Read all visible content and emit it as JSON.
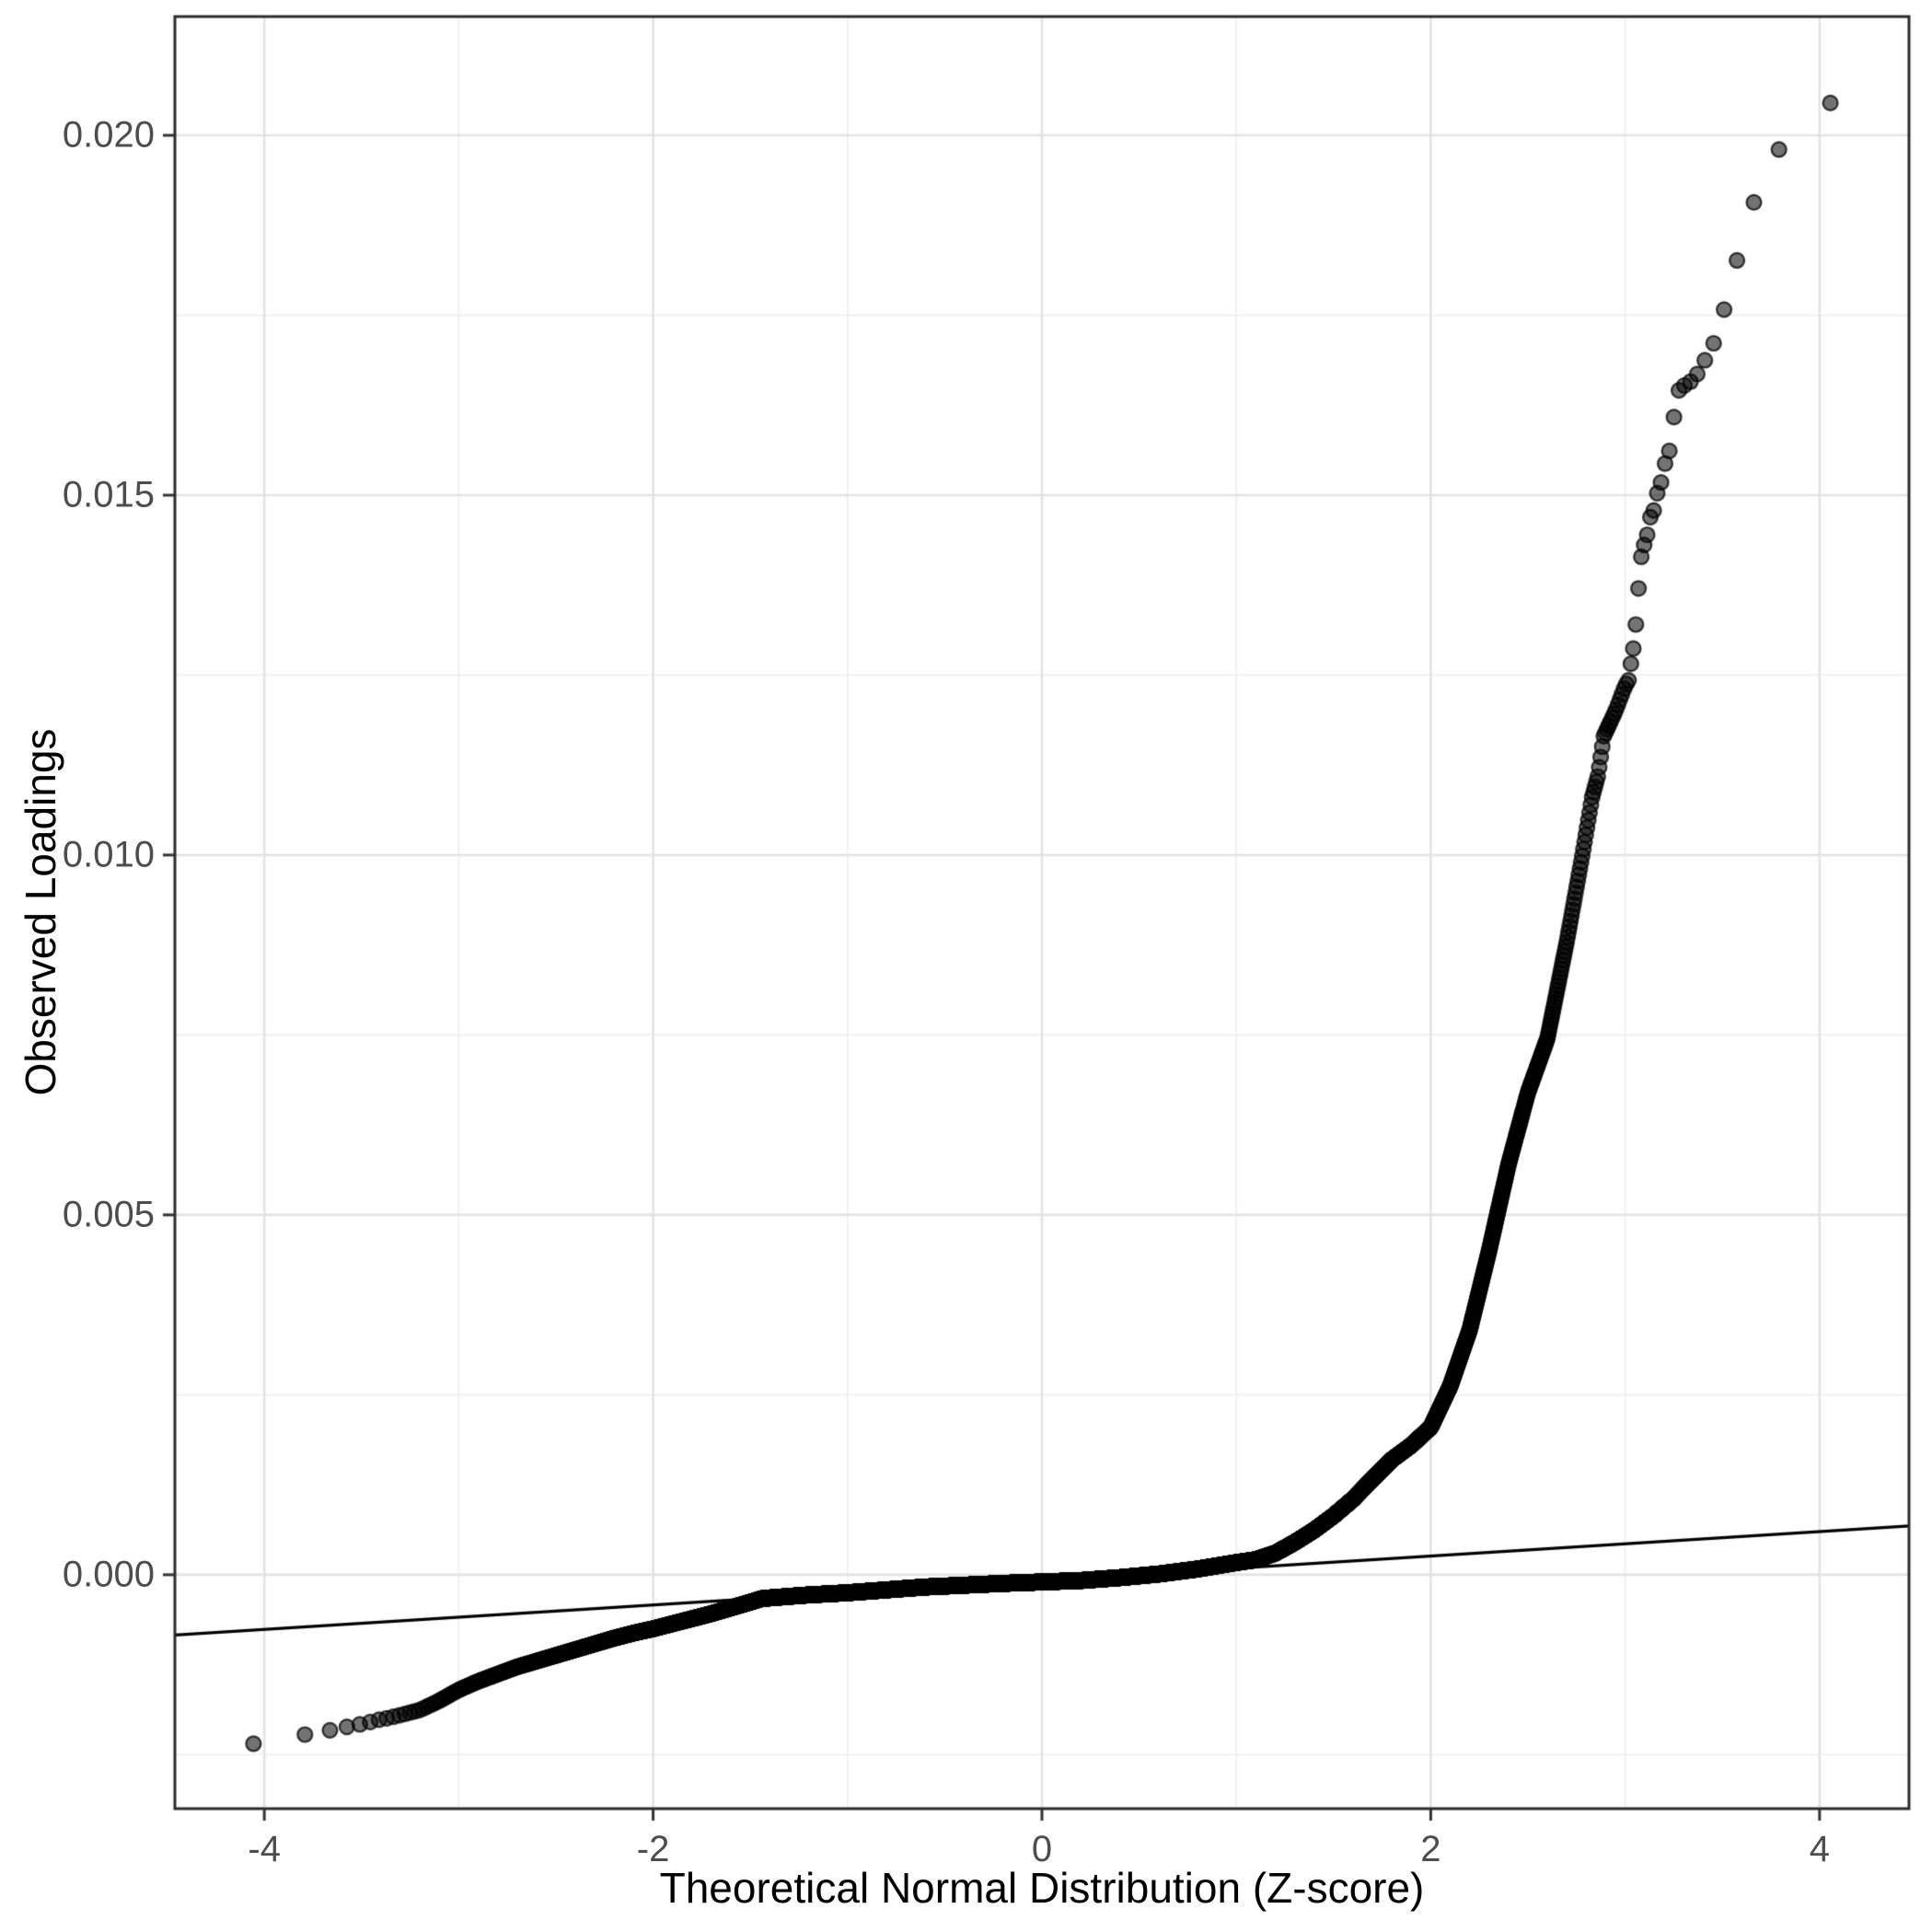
{
  "chart_data": {
    "type": "scatter",
    "subtype": "qq-plot",
    "title": "",
    "xlabel": "Theoretical Normal Distribution (Z-score)",
    "ylabel": "Observed Loadings",
    "x_ticks": [
      -4,
      -2,
      0,
      2,
      4
    ],
    "x_tick_labels": [
      "-4",
      "-2",
      "0",
      "2",
      "4"
    ],
    "y_ticks": [
      0.0,
      0.005,
      0.01,
      0.015,
      0.02
    ],
    "y_tick_labels": [
      "0.000",
      "0.005",
      "0.010",
      "0.015",
      "0.020"
    ],
    "x_minor_gridlines": [
      -3,
      -1,
      1,
      3
    ],
    "y_minor_gridlines": [
      -0.0025,
      0.0025,
      0.0075,
      0.0125,
      0.0175
    ],
    "xlim": [
      -4.46,
      4.46
    ],
    "ylim": [
      -0.00325,
      0.02165
    ],
    "grid": "on",
    "legend": "none",
    "n_points": 20000,
    "reference_line": {
      "intercept": -8e-05,
      "slope": 0.00017
    },
    "extreme_points": {
      "max": [
        4.06,
        0.02046
      ],
      "min": [
        -4.06,
        -0.00235
      ]
    },
    "quantile_curve": [
      [
        -4.46,
        -0.00256
      ],
      [
        -4.06,
        -0.00235
      ],
      [
        -3.79,
        -0.00222
      ],
      [
        -3.66,
        -0.00216
      ],
      [
        -3.57,
        -0.00211
      ],
      [
        -3.51,
        -0.00208
      ],
      [
        -3.46,
        -0.00205
      ],
      [
        -3.42,
        -0.00202
      ],
      [
        -3.38,
        -0.002
      ],
      [
        -3.3,
        -0.00195
      ],
      [
        -3.2,
        -0.00188
      ],
      [
        -3.1,
        -0.00175
      ],
      [
        -3.0,
        -0.0016
      ],
      [
        -2.9,
        -0.00148
      ],
      [
        -2.8,
        -0.00138
      ],
      [
        -2.7,
        -0.00128
      ],
      [
        -2.6,
        -0.0012
      ],
      [
        -2.5,
        -0.00112
      ],
      [
        -2.4,
        -0.00104
      ],
      [
        -2.3,
        -0.00096
      ],
      [
        -2.2,
        -0.00088
      ],
      [
        -2.1,
        -0.00081
      ],
      [
        -2.0,
        -0.00075
      ],
      [
        -1.9,
        -0.00068
      ],
      [
        -1.8,
        -0.00061
      ],
      [
        -1.7,
        -0.00054
      ],
      [
        -1.6,
        -0.00046
      ],
      [
        -1.5,
        -0.00038
      ],
      [
        -1.44,
        -0.00033
      ],
      [
        -1.3,
        -0.0003
      ],
      [
        -1.2,
        -0.00028
      ],
      [
        -1.0,
        -0.00025
      ],
      [
        -0.8,
        -0.00021
      ],
      [
        -0.6,
        -0.00017
      ],
      [
        -0.4,
        -0.000145
      ],
      [
        -0.2,
        -0.00012
      ],
      [
        0.0,
        -0.0001
      ],
      [
        0.2,
        -8e-05
      ],
      [
        0.4,
        -4e-05
      ],
      [
        0.6,
        1e-05
      ],
      [
        0.8,
        8e-05
      ],
      [
        1.0,
        0.00017
      ],
      [
        1.1,
        0.00021
      ],
      [
        1.2,
        0.0003
      ],
      [
        1.3,
        0.00045
      ],
      [
        1.4,
        0.00062
      ],
      [
        1.5,
        0.00082
      ],
      [
        1.6,
        0.00105
      ],
      [
        1.7,
        0.00133
      ],
      [
        1.8,
        0.0016
      ],
      [
        1.9,
        0.0018
      ],
      [
        2.0,
        0.00205
      ],
      [
        2.1,
        0.00262
      ],
      [
        2.2,
        0.0034
      ],
      [
        2.3,
        0.0045
      ],
      [
        2.4,
        0.0057
      ],
      [
        2.5,
        0.0067
      ],
      [
        2.6,
        0.00745
      ],
      [
        2.7,
        0.0088
      ],
      [
        2.78,
        0.01
      ],
      [
        2.83,
        0.0108
      ],
      [
        2.86,
        0.0111
      ],
      [
        2.89,
        0.01165
      ],
      [
        2.95,
        0.012
      ],
      [
        3.0,
        0.01235
      ],
      [
        3.02,
        0.01244
      ],
      [
        3.03,
        0.01267
      ],
      [
        3.05,
        0.013
      ],
      [
        3.06,
        0.0134
      ],
      [
        3.08,
        0.0141
      ],
      [
        3.09,
        0.01425
      ],
      [
        3.11,
        0.0144
      ],
      [
        3.13,
        0.0147
      ],
      [
        3.14,
        0.01476
      ],
      [
        3.15,
        0.0148
      ],
      [
        3.17,
        0.0151
      ],
      [
        3.18,
        0.01512
      ],
      [
        3.21,
        0.0155
      ],
      [
        3.24,
        0.0157
      ],
      [
        3.26,
        0.0164
      ],
      [
        3.29,
        0.0165
      ],
      [
        3.32,
        0.01655
      ],
      [
        3.35,
        0.0166
      ],
      [
        3.4,
        0.0168
      ],
      [
        3.44,
        0.0171
      ],
      [
        3.47,
        0.01712
      ],
      [
        3.52,
        0.01771
      ],
      [
        3.58,
        0.01831
      ],
      [
        3.67,
        0.01914
      ],
      [
        3.79,
        0.0198
      ],
      [
        4.06,
        0.02046
      ],
      [
        4.46,
        0.0215
      ]
    ],
    "colors": {
      "background": "#ffffff",
      "panel_border": "#2b2b2b",
      "grid_major": "#e3e3e3",
      "grid_minor": "#f0f0f0",
      "point_fill": "rgba(0,0,0,0.55)",
      "point_stroke": "rgba(0,0,0,0.75)",
      "reference_line": "#000000",
      "tick_mark": "#333333",
      "tick_text": "#4d4d4d",
      "title_text": "#000000"
    }
  }
}
